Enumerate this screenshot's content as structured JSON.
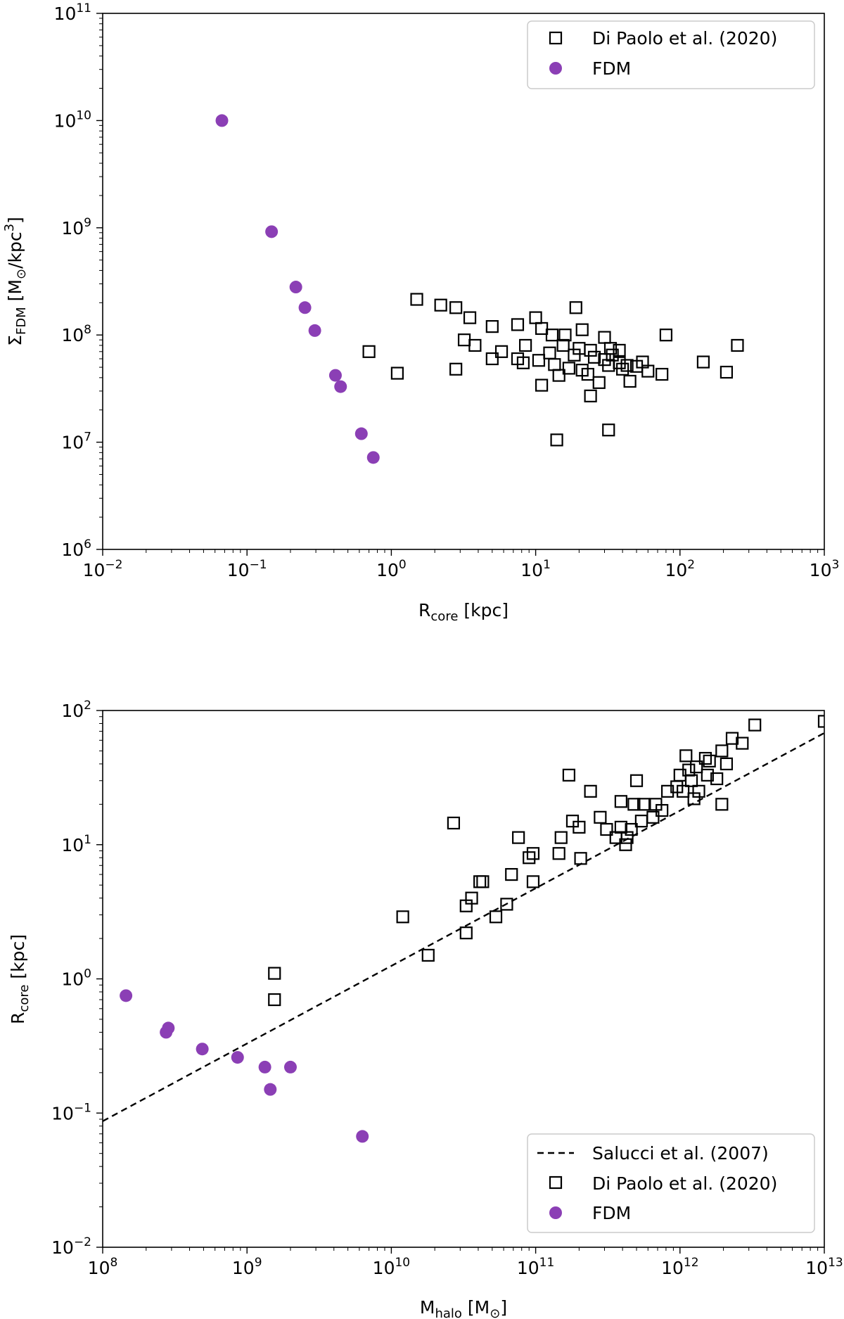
{
  "chart_data": [
    {
      "type": "scatter",
      "id": "top",
      "xscale": "log",
      "yscale": "log",
      "xlim": [
        0.01,
        1000
      ],
      "ylim": [
        1000000.0,
        100000000000.0
      ],
      "xlabel": {
        "main": "R",
        "sub": "core",
        "rest": " [kpc]"
      },
      "ylabel": {
        "main": "Σ",
        "sub": "FDM",
        "mid": " [M",
        "odot": "⊙",
        "slash": "/kpc",
        "sup": "3",
        "end": "]"
      },
      "xticks": [
        {
          "base": "10",
          "exp": "−2"
        },
        {
          "base": "10",
          "exp": "−1"
        },
        {
          "base": "10",
          "exp": "0"
        },
        {
          "base": "10",
          "exp": "1"
        },
        {
          "base": "10",
          "exp": "2"
        },
        {
          "base": "10",
          "exp": "3"
        }
      ],
      "yticks": [
        {
          "base": "10",
          "exp": "6"
        },
        {
          "base": "10",
          "exp": "7"
        },
        {
          "base": "10",
          "exp": "8"
        },
        {
          "base": "10",
          "exp": "9"
        },
        {
          "base": "10",
          "exp": "10"
        },
        {
          "base": "10",
          "exp": "11"
        }
      ],
      "legend": {
        "position": "top-right",
        "entries": [
          {
            "label": "Di Paolo et al. (2020)",
            "marker": "square"
          },
          {
            "label": "FDM",
            "marker": "circle"
          }
        ]
      },
      "series": [
        {
          "name": "Di Paolo et al. (2020)",
          "marker": "square",
          "points": [
            [
              1.5,
              215000000.0
            ],
            [
              2.2,
              190000000.0
            ],
            [
              2.8,
              180000000.0
            ],
            [
              3.5,
              145000000.0
            ],
            [
              5.0,
              120000000.0
            ],
            [
              7.5,
              125000000.0
            ],
            [
              10,
              145000000.0
            ],
            [
              11,
              115000000.0
            ],
            [
              13,
              100000000.0
            ],
            [
              16,
              100000000.0
            ],
            [
              19,
              180000000.0
            ],
            [
              21,
              112000000.0
            ],
            [
              24,
              72000000.0
            ],
            [
              30,
              95000000.0
            ],
            [
              33,
              75000000.0
            ],
            [
              38,
              72000000.0
            ],
            [
              80,
              100000000.0
            ],
            [
              250,
              80000000.0
            ],
            [
              0.7,
              70000000.0
            ],
            [
              1.1,
              44000000.0
            ],
            [
              2.8,
              48000000.0
            ],
            [
              3.2,
              90000000.0
            ],
            [
              3.8,
              80000000.0
            ],
            [
              5.0,
              60000000.0
            ],
            [
              5.8,
              70000000.0
            ],
            [
              7.5,
              60000000.0
            ],
            [
              8.2,
              55000000.0
            ],
            [
              8.5,
              80000000.0
            ],
            [
              10.5,
              58000000.0
            ],
            [
              11,
              34000000.0
            ],
            [
              12.5,
              68000000.0
            ],
            [
              13.5,
              53000000.0
            ],
            [
              14.5,
              42000000.0
            ],
            [
              15.5,
              80000000.0
            ],
            [
              17,
              49000000.0
            ],
            [
              18.5,
              65000000.0
            ],
            [
              20,
              75000000.0
            ],
            [
              21,
              47000000.0
            ],
            [
              23,
              43000000.0
            ],
            [
              24,
              27000000.0
            ],
            [
              25.5,
              62000000.0
            ],
            [
              27.5,
              36000000.0
            ],
            [
              30,
              59000000.0
            ],
            [
              32,
              52000000.0
            ],
            [
              34,
              65000000.0
            ],
            [
              38,
              55000000.0
            ],
            [
              40,
              48000000.0
            ],
            [
              43,
              52000000.0
            ],
            [
              45,
              37000000.0
            ],
            [
              50,
              51000000.0
            ],
            [
              55,
              56000000.0
            ],
            [
              60,
              46000000.0
            ],
            [
              75,
              43000000.0
            ],
            [
              145,
              56000000.0
            ],
            [
              210,
              45000000.0
            ],
            [
              14,
              10500000.0
            ],
            [
              32,
              13000000.0
            ]
          ]
        },
        {
          "name": "FDM",
          "marker": "circle",
          "points": [
            [
              0.067,
              10000000000.0
            ],
            [
              0.148,
              920000000.0
            ],
            [
              0.218,
              280000000.0
            ],
            [
              0.252,
              180000000.0
            ],
            [
              0.295,
              110000000.0
            ],
            [
              0.41,
              42000000.0
            ],
            [
              0.445,
              33000000.0
            ],
            [
              0.62,
              12000000.0
            ],
            [
              0.75,
              7200000.0
            ]
          ]
        }
      ]
    },
    {
      "type": "scatter",
      "id": "bottom",
      "xscale": "log",
      "yscale": "log",
      "xlim": [
        100000000.0,
        10000000000000.0
      ],
      "ylim": [
        0.01,
        100
      ],
      "xlabel": {
        "main": "M",
        "sub": "halo",
        "mid": " [M",
        "odot": "⊙",
        "end": "]"
      },
      "ylabel": {
        "main": "R",
        "sub": "core",
        "rest": " [kpc]"
      },
      "xticks": [
        {
          "base": "10",
          "exp": "8"
        },
        {
          "base": "10",
          "exp": "9"
        },
        {
          "base": "10",
          "exp": "10"
        },
        {
          "base": "10",
          "exp": "11"
        },
        {
          "base": "10",
          "exp": "12"
        },
        {
          "base": "10",
          "exp": "13"
        }
      ],
      "yticks": [
        {
          "base": "10",
          "exp": "−2"
        },
        {
          "base": "10",
          "exp": "−1"
        },
        {
          "base": "10",
          "exp": "0"
        },
        {
          "base": "10",
          "exp": "1"
        },
        {
          "base": "10",
          "exp": "2"
        }
      ],
      "legend": {
        "position": "bottom-right",
        "entries": [
          {
            "label": "Salucci et al. (2007)",
            "marker": "dashed-line"
          },
          {
            "label": "Di Paolo et al. (2020)",
            "marker": "square"
          },
          {
            "label": "FDM",
            "marker": "circle"
          }
        ]
      },
      "line": {
        "name": "Salucci et al. (2007)",
        "style": "dashed",
        "points": [
          [
            100000000.0,
            0.087
          ],
          [
            10000000000000.0,
            68
          ]
        ]
      },
      "series": [
        {
          "name": "Di Paolo et al. (2020)",
          "marker": "square",
          "points": [
            [
              1550000000.0,
              1.1
            ],
            [
              1550000000.0,
              0.7
            ],
            [
              12000000000.0,
              2.9
            ],
            [
              18000000000.0,
              1.5
            ],
            [
              27000000000.0,
              14.5
            ],
            [
              33000000000.0,
              3.5
            ],
            [
              33000000000.0,
              2.2
            ],
            [
              36000000000.0,
              4.0
            ],
            [
              41000000000.0,
              5.3
            ],
            [
              43000000000.0,
              5.3
            ],
            [
              53000000000.0,
              2.9
            ],
            [
              63000000000.0,
              3.6
            ],
            [
              68000000000.0,
              6.0
            ],
            [
              76000000000.0,
              11.3
            ],
            [
              90000000000.0,
              8.0
            ],
            [
              96000000000.0,
              8.6
            ],
            [
              96000000000.0,
              5.3
            ],
            [
              145000000000.0,
              8.6
            ],
            [
              150000000000.0,
              11.3
            ],
            [
              170000000000.0,
              33.0
            ],
            [
              180000000000.0,
              15.0
            ],
            [
              200000000000.0,
              13.5
            ],
            [
              205000000000.0,
              7.9
            ],
            [
              240000000000.0,
              25.0
            ],
            [
              280000000000.0,
              16.0
            ],
            [
              310000000000.0,
              13.0
            ],
            [
              360000000000.0,
              11.3
            ],
            [
              390000000000.0,
              21.0
            ],
            [
              390000000000.0,
              13.5
            ],
            [
              420000000000.0,
              10.0
            ],
            [
              430000000000.0,
              11.3
            ],
            [
              460000000000.0,
              13.0
            ],
            [
              480000000000.0,
              20.0
            ],
            [
              500000000000.0,
              30.0
            ],
            [
              540000000000.0,
              15.0
            ],
            [
              560000000000.0,
              20.0
            ],
            [
              650000000000.0,
              16.0
            ],
            [
              680000000000.0,
              20.0
            ],
            [
              750000000000.0,
              18.0
            ],
            [
              820000000000.0,
              25.0
            ],
            [
              950000000000.0,
              27.0
            ],
            [
              1000000000000.0,
              33.0
            ],
            [
              1050000000000.0,
              25.0
            ],
            [
              1100000000000.0,
              46.0
            ],
            [
              1150000000000.0,
              36.0
            ],
            [
              1200000000000.0,
              30.0
            ],
            [
              1250000000000.0,
              22.0
            ],
            [
              1300000000000.0,
              38.0
            ],
            [
              1350000000000.0,
              25.0
            ],
            [
              1500000000000.0,
              44.0
            ],
            [
              1550000000000.0,
              33.0
            ],
            [
              1600000000000.0,
              42.0
            ],
            [
              1800000000000.0,
              31.0
            ],
            [
              1950000000000.0,
              50.0
            ],
            [
              1950000000000.0,
              20.0
            ],
            [
              2100000000000.0,
              40.0
            ],
            [
              2300000000000.0,
              62.0
            ],
            [
              2700000000000.0,
              57.0
            ],
            [
              3300000000000.0,
              78.0
            ],
            [
              10000000000000.0,
              83.0
            ]
          ]
        },
        {
          "name": "FDM",
          "marker": "circle",
          "points": [
            [
              145000000.0,
              0.75
            ],
            [
              275000000.0,
              0.4
            ],
            [
              285000000.0,
              0.43
            ],
            [
              490000000.0,
              0.3
            ],
            [
              860000000.0,
              0.26
            ],
            [
              1330000000.0,
              0.22
            ],
            [
              1450000000.0,
              0.15
            ],
            [
              2000000000.0,
              0.22
            ],
            [
              6300000000.0,
              0.067
            ]
          ]
        }
      ]
    }
  ],
  "colors": {
    "fdm": "#8b3fb5",
    "square_edge": "#000000",
    "axes": "#000000"
  }
}
